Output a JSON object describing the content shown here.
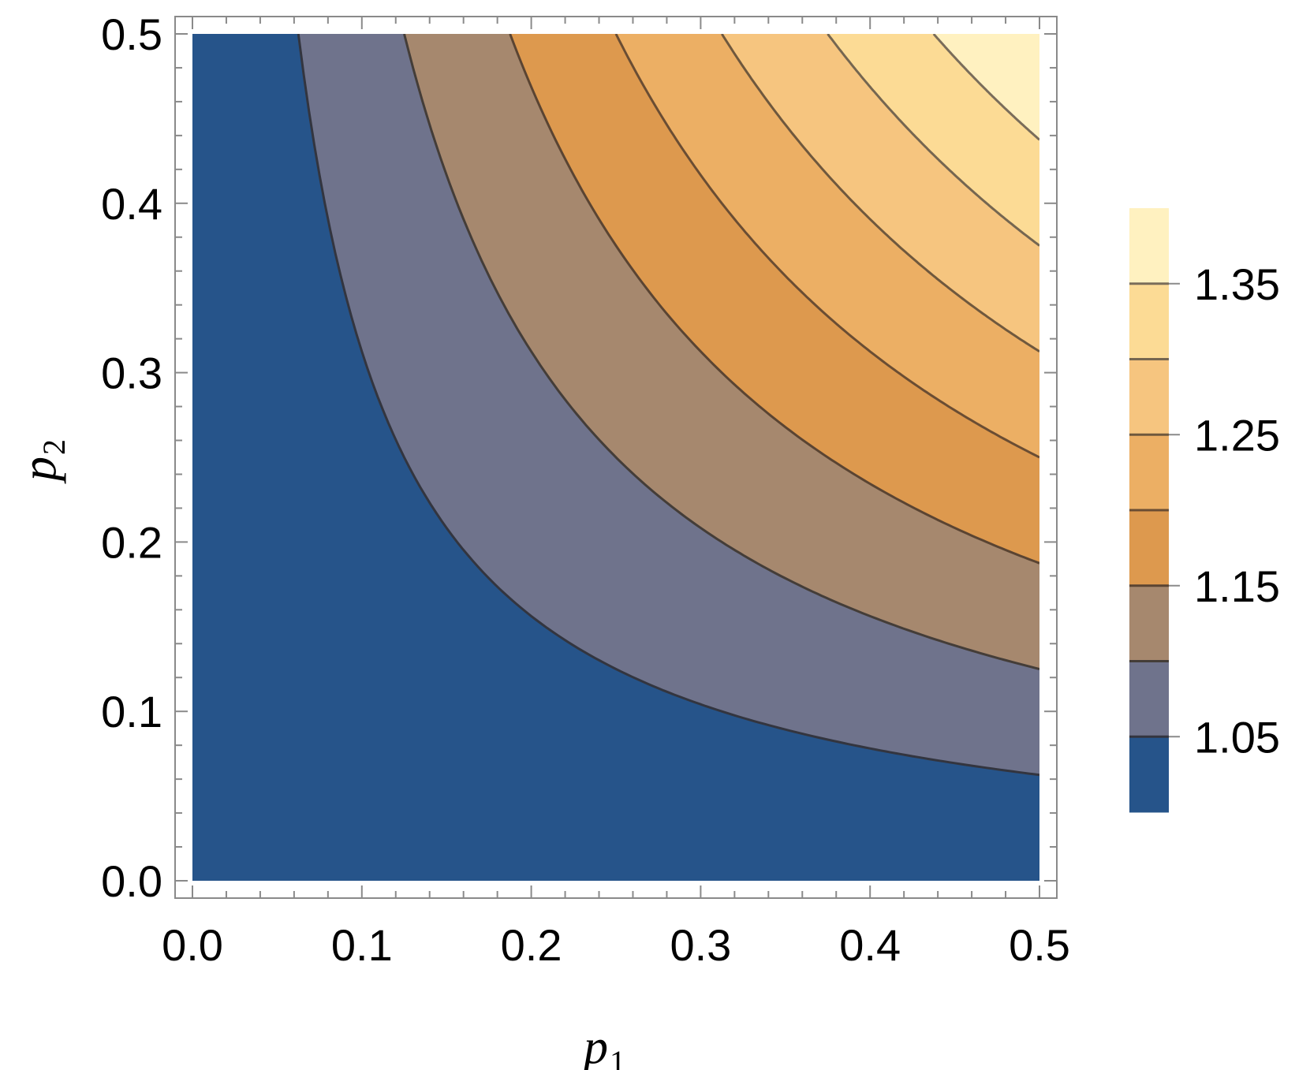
{
  "chart_data": {
    "type": "contour",
    "xlabel": "p",
    "xlabel_sub": "1",
    "ylabel": "p",
    "ylabel_sub": "2",
    "xlim": [
      0,
      0.5
    ],
    "ylim": [
      0,
      0.5
    ],
    "x_ticks": [
      "0.0",
      "0.1",
      "0.2",
      "0.3",
      "0.4",
      "0.5"
    ],
    "y_ticks": [
      "0.0",
      "0.1",
      "0.2",
      "0.3",
      "0.4",
      "0.5"
    ],
    "x_tick_values": [
      0,
      0.1,
      0.2,
      0.3,
      0.4,
      0.5
    ],
    "y_tick_values": [
      0,
      0.1,
      0.2,
      0.3,
      0.4,
      0.5
    ],
    "contour_levels": [
      1.05,
      1.1,
      1.15,
      1.2,
      1.25,
      1.3,
      1.35
    ],
    "band_colors": [
      "#26548a",
      "#6f738c",
      "#a6886e",
      "#dd994e",
      "#ecaf64",
      "#f6c57f",
      "#fcdb95",
      "#fff1c0"
    ],
    "line_colors": [
      "#33353f",
      "#443d38",
      "#5a4432",
      "#6a4d33",
      "#6f583d",
      "#756650",
      "#7a6d5a"
    ],
    "colorbar": {
      "range": [
        1.0,
        1.4
      ],
      "tick_values": [
        1.05,
        1.15,
        1.25,
        1.35
      ],
      "tick_labels": [
        "1.05",
        "1.15",
        "1.25",
        "1.35"
      ]
    },
    "grid": false
  }
}
